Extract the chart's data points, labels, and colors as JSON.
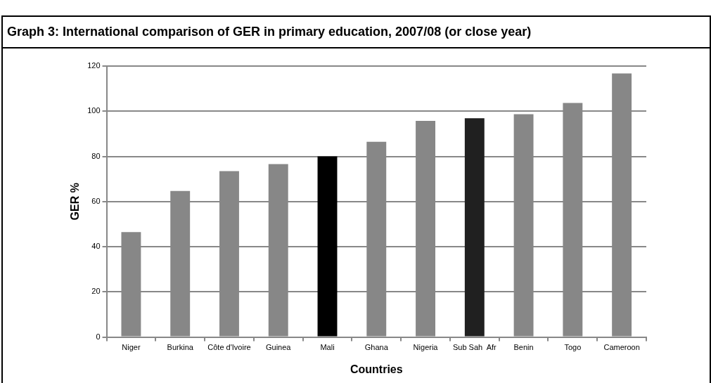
{
  "chart_data": {
    "type": "bar",
    "title": "Graph 3: International comparison of GER in primary education, 2007/08 (or close year)",
    "xlabel": "Countries",
    "ylabel": "GER %",
    "categories": [
      "Niger",
      "Burkina",
      "Côte d'Ivoire",
      "Guinea",
      "Mali",
      "Ghana",
      "Nigeria",
      "Sub Sah  Afr",
      "Benin",
      "Togo",
      "Cameroon"
    ],
    "values": [
      46.5,
      64.7,
      73.5,
      76.6,
      80,
      86.5,
      95.7,
      96.9,
      98.7,
      103.7,
      116.7
    ],
    "colors": [
      "#878787",
      "#878787",
      "#878787",
      "#878787",
      "#000000",
      "#878787",
      "#878787",
      "#202020",
      "#878787",
      "#878787",
      "#878787"
    ],
    "ylim": [
      0,
      120
    ],
    "yticks": [
      0,
      20,
      40,
      60,
      80,
      100,
      120
    ],
    "grid": "y",
    "legend": false
  }
}
